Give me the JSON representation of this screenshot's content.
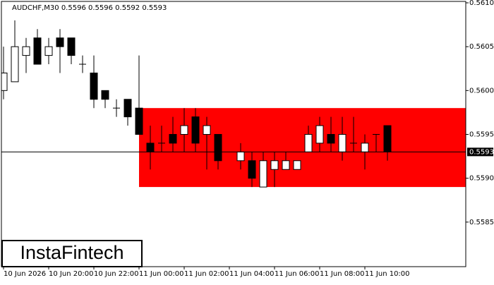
{
  "chart_data": {
    "type": "candlestick",
    "title": "AUDCHF,M30  0.5596 0.5596 0.5592 0.5593",
    "categories": [
      "10 Jun 2026",
      null,
      null,
      null,
      "10 Jun 20:00",
      null,
      null,
      null,
      "10 Jun 22:00",
      null,
      null,
      null,
      "11 Jun 00:00",
      null,
      null,
      null,
      "11 Jun 02:00",
      null,
      null,
      null,
      "11 Jun 04:00",
      null,
      null,
      null,
      "11 Jun 06:00",
      null,
      null,
      null,
      "11 Jun 08:00",
      null,
      null,
      null,
      "11 Jun 10:00",
      null,
      null
    ],
    "open": [
      0.56,
      0.5601,
      0.5604,
      0.5606,
      0.5604,
      0.5606,
      0.5606,
      0.5603,
      0.5602,
      0.56,
      0.5598,
      0.5599,
      0.5598,
      0.5594,
      0.5594,
      0.5595,
      0.5595,
      0.5597,
      0.5595,
      0.5595,
      null,
      0.5592,
      0.5592,
      0.5589,
      0.5591,
      0.5591,
      0.5591,
      0.5593,
      0.5594,
      0.5595,
      0.5593,
      0.5594,
      0.5593,
      0.5595,
      0.5596
    ],
    "high": [
      0.5605,
      0.5608,
      0.5606,
      0.5607,
      0.5606,
      0.5607,
      0.5606,
      0.5604,
      0.5604,
      0.56,
      0.5599,
      0.5599,
      0.5604,
      0.5596,
      0.5596,
      0.5597,
      0.5598,
      0.5598,
      0.5597,
      0.5595,
      null,
      0.5594,
      0.5593,
      0.5593,
      0.5593,
      0.5593,
      0.5592,
      0.5596,
      0.5597,
      0.5597,
      0.5597,
      0.5597,
      0.5595,
      0.5595,
      0.5596
    ],
    "low": [
      0.5599,
      0.5601,
      0.5602,
      0.5603,
      0.5603,
      0.5602,
      0.5603,
      0.5602,
      0.5598,
      0.5598,
      0.5597,
      0.5596,
      0.5595,
      0.5591,
      0.5593,
      0.5593,
      0.5593,
      0.5593,
      0.5591,
      0.5591,
      null,
      0.5591,
      0.5589,
      0.5589,
      0.5589,
      0.5591,
      0.5591,
      0.5593,
      0.5593,
      0.5593,
      0.5592,
      0.5593,
      0.5591,
      0.5593,
      0.5592
    ],
    "close": [
      0.5602,
      0.5605,
      0.5605,
      0.5603,
      0.5605,
      0.5605,
      0.5604,
      0.5603,
      0.5599,
      0.5599,
      0.5598,
      0.5597,
      0.5595,
      0.5593,
      0.5594,
      0.5594,
      0.5596,
      0.5594,
      0.5596,
      0.5592,
      null,
      0.5593,
      0.559,
      0.5592,
      0.5592,
      0.5592,
      0.5592,
      0.5595,
      0.5596,
      0.5594,
      0.5595,
      0.5594,
      0.5594,
      0.5595,
      0.5593
    ],
    "ylim": [
      0.558,
      0.561
    ],
    "yticks": [
      0.5585,
      {
        "value": 0.559,
        "label": "0.5590"
      },
      0.5595,
      {
        "value": 0.56,
        "label": "0.5600"
      },
      0.5605,
      {
        "value": 0.561,
        "label": "0.5610"
      }
    ],
    "zone": {
      "top": 0.5598,
      "bottom": 0.5589,
      "color": "#ff0000",
      "start": 12
    },
    "current_price": 0.5593,
    "up_color": "#ffffff",
    "down_color": "#000000"
  },
  "logo": "InstaFintech"
}
